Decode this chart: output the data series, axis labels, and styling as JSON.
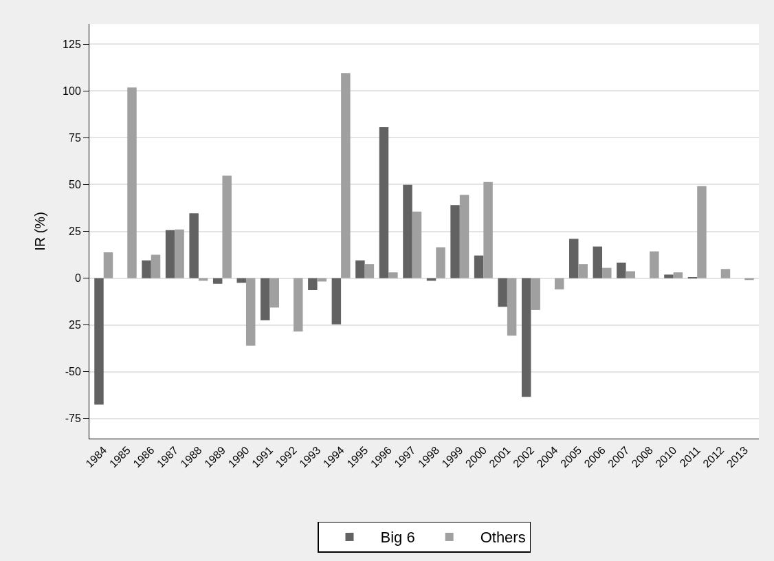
{
  "chart_data": {
    "type": "bar",
    "ylabel": "IR (%)",
    "categories": [
      "1984",
      "1985",
      "1986",
      "1987",
      "1988",
      "1989",
      "1990",
      "1991",
      "1992",
      "1993",
      "1994",
      "1995",
      "1996",
      "1997",
      "1998",
      "1999",
      "2000",
      "2001",
      "2002",
      "2004",
      "2005",
      "2006",
      "2007",
      "2008",
      "2010",
      "2011",
      "2012",
      "2013"
    ],
    "series": [
      {
        "name": "Big 6",
        "color": "#626262",
        "values": [
          -67.5,
          null,
          9.5,
          25.6,
          34.6,
          -3,
          -2.5,
          -22.5,
          null,
          -6.4,
          -24.7,
          9.5,
          80.6,
          49.9,
          -1.4,
          39,
          12.1,
          -15.3,
          -63.4,
          null,
          21,
          16.9,
          8.3,
          null,
          1.9,
          0.3,
          null,
          null
        ]
      },
      {
        "name": "Others",
        "color": "#a0a0a0",
        "values": [
          13.8,
          101.8,
          12.5,
          26,
          -1.4,
          54.7,
          -36,
          -15.7,
          -28.5,
          -1.8,
          109.5,
          7.5,
          3.1,
          35.6,
          16.5,
          44.5,
          51.3,
          -30.7,
          -17,
          -6,
          7.5,
          5.5,
          3.7,
          14.3,
          3.1,
          49.1,
          4.9,
          -1
        ]
      }
    ],
    "ylim": [
      -85.7,
      135.7
    ],
    "yticks": [
      {
        "value": -75,
        "label": "-75"
      },
      {
        "value": -50,
        "label": "-50"
      },
      {
        "value": -25,
        "label": "25"
      },
      0,
      25,
      50,
      75,
      100,
      125
    ],
    "grid": "y",
    "legend": "bottom"
  }
}
